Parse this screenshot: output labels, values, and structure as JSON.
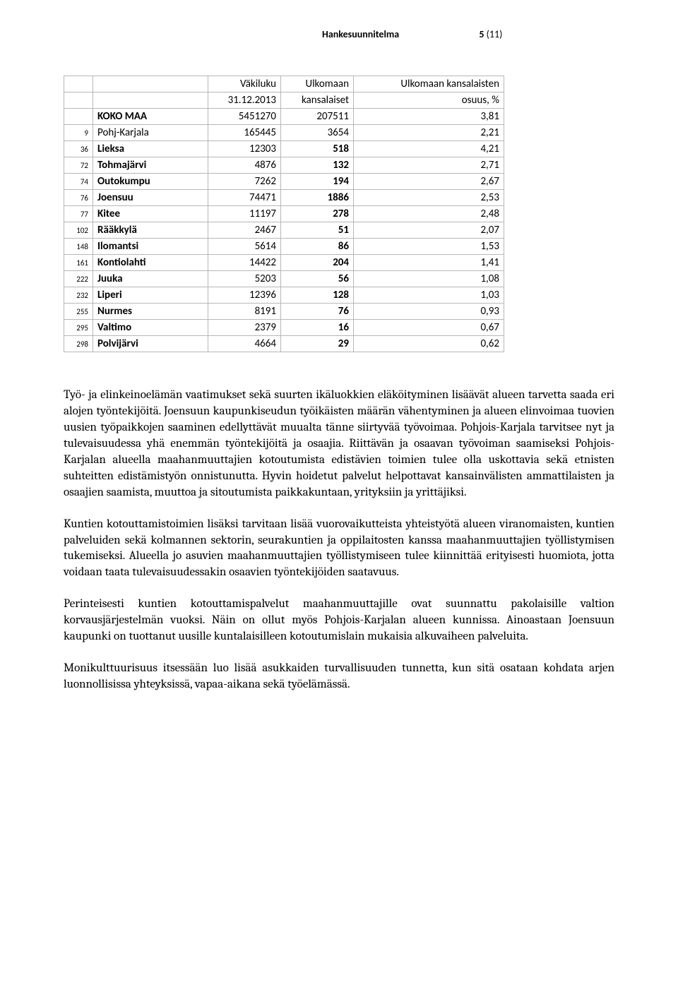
{
  "header": {
    "title": "Hankesuunnitelma",
    "page": "5",
    "of": "(11)"
  },
  "table": {
    "columns": {
      "c1": "",
      "c2": "",
      "c3a": "Väkiluku",
      "c3b": "31.12.2013",
      "c4a": "Ulkomaan",
      "c4b": "kansalaiset",
      "c5a": "Ulkomaan kansalaisten",
      "c5b": "osuus, %"
    },
    "rows": [
      {
        "rank": "",
        "name": "KOKO MAA",
        "name_bold": true,
        "v1": "5451270",
        "v2": "207511",
        "v3": "3,81",
        "bold_vals": false
      },
      {
        "rank": "9",
        "name": "Pohj-Karjala",
        "name_bold": false,
        "v1": "165445",
        "v2": "3654",
        "v3": "2,21",
        "bold_vals": false
      },
      {
        "rank": "36",
        "name": "Lieksa",
        "name_bold": true,
        "v1": "12303",
        "v2": "518",
        "v3": "4,21",
        "bold_vals": true
      },
      {
        "rank": "72",
        "name": "Tohmajärvi",
        "name_bold": true,
        "v1": "4876",
        "v2": "132",
        "v3": "2,71",
        "bold_vals": true
      },
      {
        "rank": "74",
        "name": "Outokumpu",
        "name_bold": true,
        "v1": "7262",
        "v2": "194",
        "v3": "2,67",
        "bold_vals": true
      },
      {
        "rank": "76",
        "name": "Joensuu",
        "name_bold": true,
        "v1": "74471",
        "v2": "1886",
        "v3": "2,53",
        "bold_vals": true
      },
      {
        "rank": "77",
        "name": "Kitee",
        "name_bold": true,
        "v1": "11197",
        "v2": "278",
        "v3": "2,48",
        "bold_vals": true
      },
      {
        "rank": "102",
        "name": "Rääkkylä",
        "name_bold": true,
        "v1": "2467",
        "v2": "51",
        "v3": "2,07",
        "bold_vals": true
      },
      {
        "rank": "148",
        "name": "Ilomantsi",
        "name_bold": true,
        "v1": "5614",
        "v2": "86",
        "v3": "1,53",
        "bold_vals": true
      },
      {
        "rank": "161",
        "name": "Kontiolahti",
        "name_bold": true,
        "v1": "14422",
        "v2": "204",
        "v3": "1,41",
        "bold_vals": true
      },
      {
        "rank": "222",
        "name": "Juuka",
        "name_bold": true,
        "v1": "5203",
        "v2": "56",
        "v3": "1,08",
        "bold_vals": true
      },
      {
        "rank": "232",
        "name": "Liperi",
        "name_bold": true,
        "v1": "12396",
        "v2": "128",
        "v3": "1,03",
        "bold_vals": true
      },
      {
        "rank": "255",
        "name": "Nurmes",
        "name_bold": true,
        "v1": "8191",
        "v2": "76",
        "v3": "0,93",
        "bold_vals": true
      },
      {
        "rank": "295",
        "name": "Valtimo",
        "name_bold": true,
        "v1": "2379",
        "v2": "16",
        "v3": "0,67",
        "bold_vals": true
      },
      {
        "rank": "298",
        "name": "Polvijärvi",
        "name_bold": true,
        "v1": "4664",
        "v2": "29",
        "v3": "0,62",
        "bold_vals": true
      }
    ]
  },
  "paragraphs": {
    "p1": "Työ- ja elinkeinoelämän vaatimukset sekä suurten ikäluokkien eläköityminen lisäävät alueen tarvetta saada eri alojen työntekijöitä. Joensuun kaupunkiseudun työikäisten määrän vähentyminen ja alueen elinvoimaa tuovien uusien työpaikkojen saaminen edellyttävät muualta tänne siirtyvää työvoimaa. Pohjois-Karjala tarvitsee nyt ja tulevaisuudessa yhä enemmän työntekijöitä ja osaajia. Riittävän ja osaavan työvoiman saamiseksi Pohjois-Karjalan alueella maahanmuuttajien kotoutumista edistävien toimien tulee olla uskottavia sekä etnisten suhteitten edistämistyön onnistunutta. Hyvin hoidetut palvelut helpottavat kansainvälisten ammattilaisten ja osaajien saamista, muuttoa ja sitoutumista paikkakuntaan, yrityksiin ja yrittäjiksi.",
    "p2": "Kuntien kotouttamistoimien lisäksi tarvitaan lisää vuorovaikutteista yhteistyötä alueen viranomaisten, kuntien palveluiden sekä kolmannen sektorin, seurakuntien ja oppilaitosten kanssa maahanmuuttajien työllistymisen tukemiseksi. Alueella jo asuvien maahanmuuttajien työllistymiseen tulee kiinnittää erityisesti huomiota, jotta voidaan taata tulevaisuudessakin osaavien työntekijöiden saatavuus.",
    "p3": "Perinteisesti kuntien kotouttamispalvelut maahanmuuttajille ovat suunnattu pakolaisille valtion korvausjärjestelmän vuoksi. Näin on ollut myös Pohjois-Karjalan alueen kunnissa. Ainoastaan Joensuun kaupunki on tuottanut uusille kuntalaisilleen kotoutumislain mukaisia alkuvaiheen palveluita.",
    "p4": "Monikulttuurisuus itsessään luo lisää asukkaiden turvallisuuden tunnetta, kun sitä osataan kohdata arjen luonnollisissa yhteyksissä, vapaa-aikana sekä työelämässä."
  }
}
